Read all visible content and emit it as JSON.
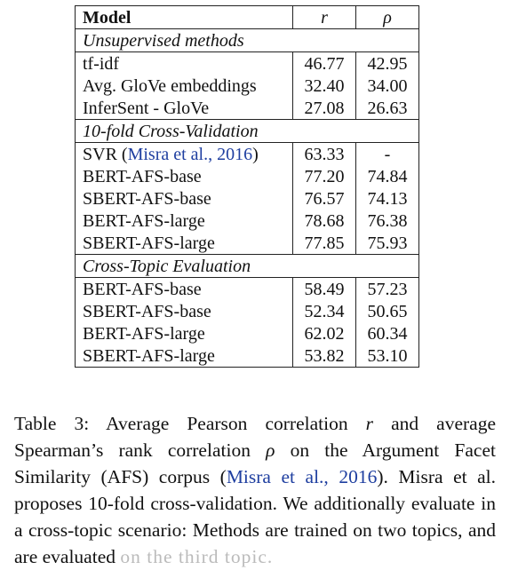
{
  "table": {
    "header": {
      "model": "Model",
      "r": "r",
      "rho": "ρ"
    },
    "sections": [
      {
        "title": "Unsupervised methods",
        "rows": [
          {
            "model": "tf-idf",
            "r": "46.77",
            "rho": "42.95"
          },
          {
            "model": "Avg. GloVe embeddings",
            "r": "32.40",
            "rho": "34.00"
          },
          {
            "model": "InferSent - GloVe",
            "r": "27.08",
            "rho": "26.63"
          }
        ]
      },
      {
        "title": "10-fold Cross-Validation",
        "rows": [
          {
            "model": "SVR",
            "cite": "Misra et al., 2016",
            "r": "63.33",
            "rho": "-"
          },
          {
            "model": "BERT-AFS-base",
            "r": "77.20",
            "rho": "74.84"
          },
          {
            "model": "SBERT-AFS-base",
            "r": "76.57",
            "rho": "74.13"
          },
          {
            "model": "BERT-AFS-large",
            "r": "78.68",
            "rho": "76.38"
          },
          {
            "model": "SBERT-AFS-large",
            "r": "77.85",
            "rho": "75.93"
          }
        ]
      },
      {
        "title": "Cross-Topic Evaluation",
        "rows": [
          {
            "model": "BERT-AFS-base",
            "r": "58.49",
            "rho": "57.23"
          },
          {
            "model": "SBERT-AFS-base",
            "r": "52.34",
            "rho": "50.65"
          },
          {
            "model": "BERT-AFS-large",
            "r": "62.02",
            "rho": "60.34"
          },
          {
            "model": "SBERT-AFS-large",
            "r": "53.82",
            "rho": "53.10"
          }
        ]
      }
    ]
  },
  "caption": {
    "part1": "Table 3:  Average Pearson correlation ",
    "r": "r",
    "part2": " and average Spearman’s rank correlation ",
    "rho": "ρ",
    "part3": " on the Argument Facet Similarity (AFS) corpus (",
    "cite": "Misra et al., 2016",
    "part4": ").  Misra et al. proposes 10-fold cross-validation.  We additionally evaluate in a cross-topic scenario: Methods are trained on two topics, and are evaluated ",
    "faded": "on the third topic."
  },
  "colors": {
    "link": "#1f3fa0",
    "text": "#111111"
  }
}
